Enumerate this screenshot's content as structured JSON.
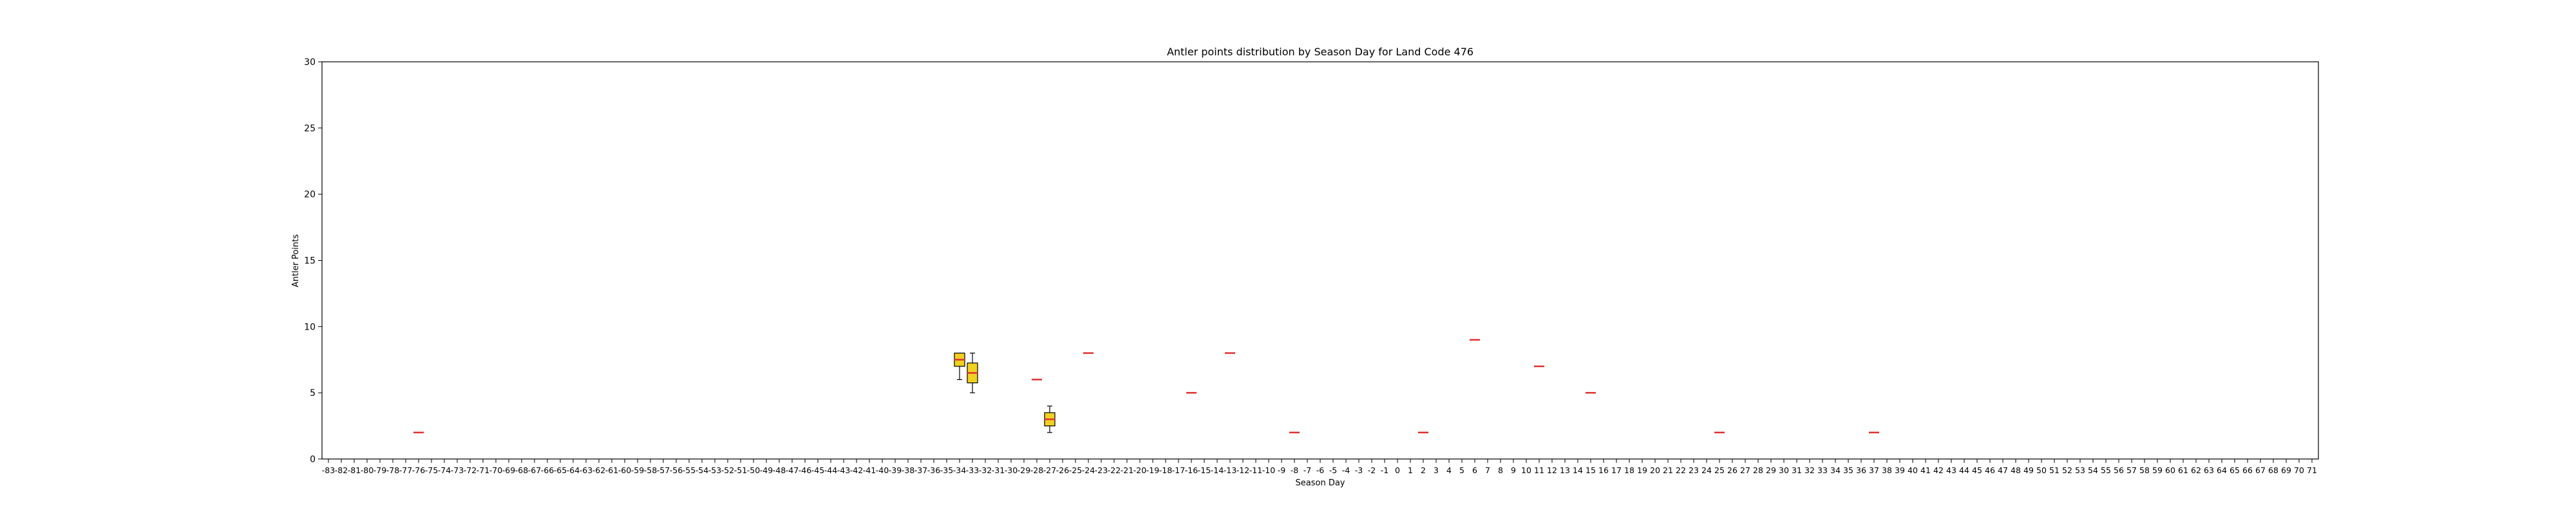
{
  "chart_data": {
    "type": "box",
    "title": "Antler points distribution by Season Day for Land Code 476",
    "xlabel": "Season Day",
    "ylabel": "Antler Points",
    "ylim": [
      0,
      30
    ],
    "yticks": [
      0,
      5,
      10,
      15,
      20,
      25,
      30
    ],
    "x_range": [
      -83,
      71
    ],
    "grid": false,
    "colors": {
      "box_fill": "#f0d020",
      "median": "#e03030",
      "axis": "#000000"
    },
    "boxes": [
      {
        "day": -76,
        "min": 2,
        "q1": 2,
        "median": 2,
        "q3": 2,
        "max": 2
      },
      {
        "day": -34,
        "min": 6,
        "q1": 7,
        "median": 7.5,
        "q3": 8,
        "max": 8
      },
      {
        "day": -33,
        "min": 5,
        "q1": 5.75,
        "median": 6.5,
        "q3": 7.25,
        "max": 8
      },
      {
        "day": -28,
        "min": 6,
        "q1": 6,
        "median": 6,
        "q3": 6,
        "max": 6
      },
      {
        "day": -27,
        "min": 2,
        "q1": 2.5,
        "median": 3,
        "q3": 3.5,
        "max": 4
      },
      {
        "day": -24,
        "min": 8,
        "q1": 8,
        "median": 8,
        "q3": 8,
        "max": 8
      },
      {
        "day": -16,
        "min": 5,
        "q1": 5,
        "median": 5,
        "q3": 5,
        "max": 5
      },
      {
        "day": -13,
        "min": 8,
        "q1": 8,
        "median": 8,
        "q3": 8,
        "max": 8
      },
      {
        "day": -8,
        "min": 2,
        "q1": 2,
        "median": 2,
        "q3": 2,
        "max": 2
      },
      {
        "day": 2,
        "min": 2,
        "q1": 2,
        "median": 2,
        "q3": 2,
        "max": 2
      },
      {
        "day": 6,
        "min": 9,
        "q1": 9,
        "median": 9,
        "q3": 9,
        "max": 9
      },
      {
        "day": 11,
        "min": 7,
        "q1": 7,
        "median": 7,
        "q3": 7,
        "max": 7
      },
      {
        "day": 15,
        "min": 5,
        "q1": 5,
        "median": 5,
        "q3": 5,
        "max": 5
      },
      {
        "day": 25,
        "min": 2,
        "q1": 2,
        "median": 2,
        "q3": 2,
        "max": 2
      },
      {
        "day": 37,
        "min": 2,
        "q1": 2,
        "median": 2,
        "q3": 2,
        "max": 2
      }
    ]
  }
}
